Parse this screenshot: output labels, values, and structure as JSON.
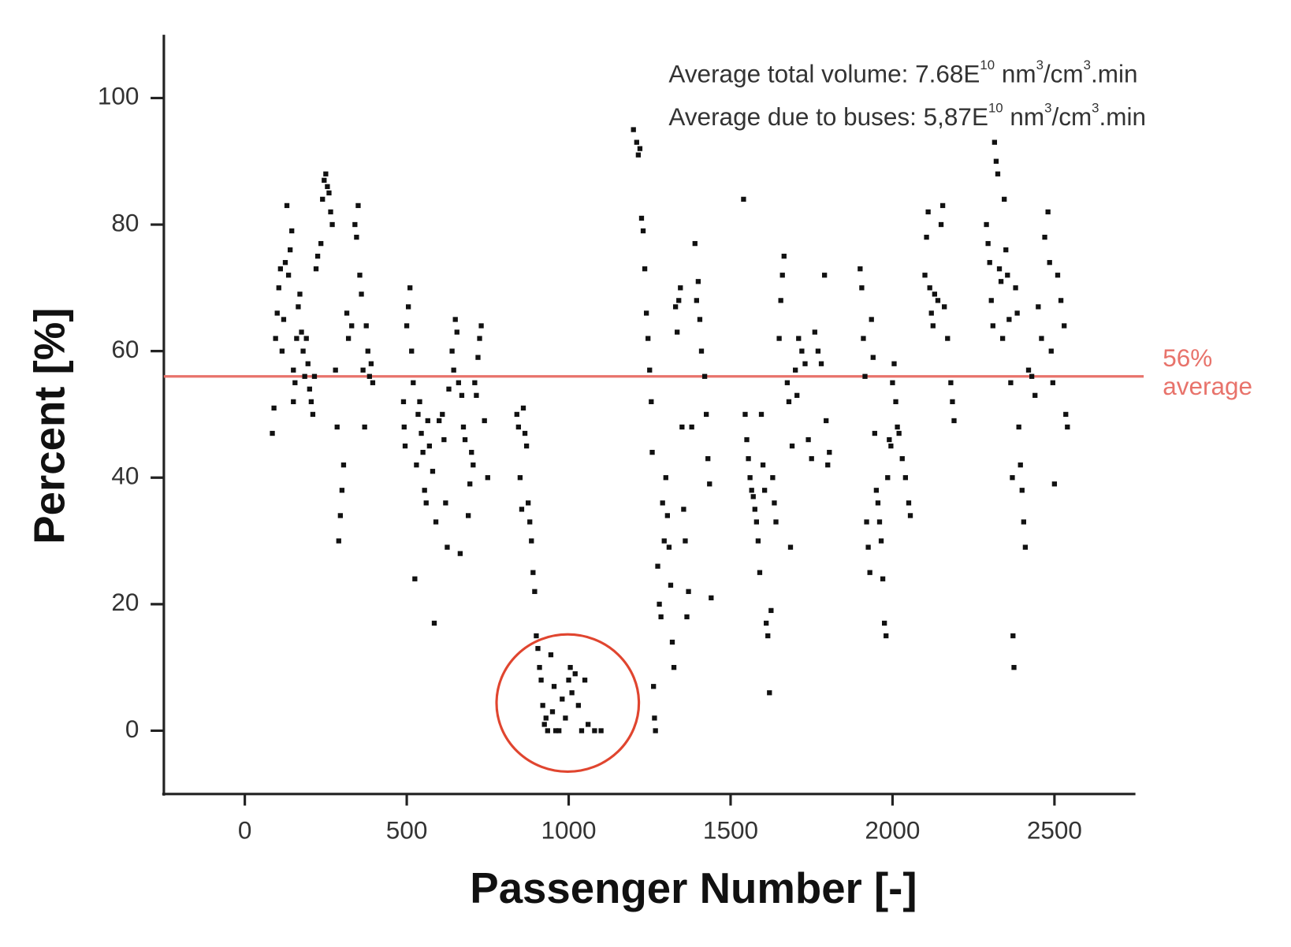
{
  "chart_data": {
    "type": "scatter",
    "x_label": "Passenger Number [-]",
    "y_label": "Percent  [%]",
    "annotations": [
      {
        "parts": [
          "Average total volume: 7.68E",
          "10",
          " nm",
          "3",
          "/cm",
          "3",
          ".min"
        ]
      },
      {
        "parts": [
          "Average due to buses: 5,87E",
          "10",
          " nm",
          "3",
          "/cm",
          "3",
          ".min"
        ]
      }
    ],
    "average_line": {
      "value": 56,
      "label": "56%",
      "text": "average",
      "color": "#e8736b"
    },
    "color": "#111111",
    "xlim": [
      -250,
      2750
    ],
    "xticks": [
      0,
      500,
      1000,
      1500,
      2000,
      2500
    ],
    "ylim": [
      -10,
      110
    ],
    "yticks": [
      0,
      20,
      40,
      60,
      80,
      100
    ],
    "x": [
      85,
      90,
      95,
      100,
      105,
      110,
      115,
      120,
      125,
      130,
      135,
      140,
      145,
      150,
      150,
      155,
      160,
      165,
      170,
      175,
      180,
      185,
      190,
      195,
      200,
      205,
      210,
      215,
      220,
      225,
      235,
      240,
      245,
      250,
      255,
      260,
      265,
      270,
      280,
      285,
      290,
      295,
      300,
      305,
      315,
      320,
      330,
      340,
      345,
      350,
      355,
      360,
      365,
      370,
      375,
      380,
      385,
      390,
      395,
      490,
      492,
      495,
      500,
      505,
      510,
      515,
      520,
      525,
      530,
      535,
      540,
      545,
      550,
      555,
      560,
      565,
      570,
      580,
      585,
      590,
      600,
      610,
      615,
      620,
      625,
      630,
      640,
      645,
      650,
      655,
      660,
      665,
      670,
      675,
      680,
      690,
      695,
      700,
      705,
      710,
      715,
      720,
      725,
      730,
      740,
      750,
      840,
      845,
      850,
      855,
      860,
      865,
      870,
      875,
      880,
      885,
      890,
      895,
      900,
      905,
      910,
      915,
      920,
      925,
      930,
      935,
      945,
      950,
      955,
      960,
      970,
      980,
      990,
      1000,
      1005,
      1010,
      1020,
      1030,
      1040,
      1050,
      1060,
      1080,
      1100,
      1200,
      1210,
      1215,
      1220,
      1225,
      1230,
      1235,
      1240,
      1245,
      1250,
      1255,
      1258,
      1262,
      1265,
      1268,
      1275,
      1280,
      1285,
      1290,
      1295,
      1300,
      1305,
      1310,
      1315,
      1320,
      1325,
      1330,
      1335,
      1340,
      1345,
      1350,
      1355,
      1360,
      1365,
      1370,
      1380,
      1390,
      1395,
      1400,
      1405,
      1410,
      1420,
      1425,
      1430,
      1435,
      1440,
      1540,
      1545,
      1550,
      1555,
      1560,
      1565,
      1570,
      1575,
      1580,
      1585,
      1590,
      1595,
      1600,
      1605,
      1610,
      1615,
      1620,
      1625,
      1630,
      1635,
      1640,
      1650,
      1655,
      1660,
      1665,
      1675,
      1680,
      1685,
      1690,
      1700,
      1705,
      1710,
      1720,
      1730,
      1740,
      1750,
      1760,
      1770,
      1780,
      1790,
      1795,
      1800,
      1805,
      1900,
      1905,
      1910,
      1915,
      1920,
      1925,
      1930,
      1935,
      1940,
      1945,
      1950,
      1955,
      1960,
      1965,
      1970,
      1975,
      1980,
      1985,
      1990,
      1995,
      2000,
      2005,
      2010,
      2015,
      2020,
      2030,
      2040,
      2050,
      2055,
      2100,
      2105,
      2110,
      2115,
      2120,
      2125,
      2130,
      2140,
      2150,
      2155,
      2160,
      2170,
      2180,
      2185,
      2190,
      2290,
      2295,
      2300,
      2305,
      2310,
      2315,
      2320,
      2325,
      2330,
      2335,
      2340,
      2345,
      2350,
      2355,
      2360,
      2365,
      2370,
      2372,
      2375,
      2380,
      2385,
      2390,
      2395,
      2400,
      2405,
      2410,
      2420,
      2430,
      2440,
      2450,
      2460,
      2470,
      2480,
      2485,
      2490,
      2495,
      2500,
      2510,
      2520,
      2530,
      2535,
      2540
    ],
    "values": [
      47,
      51,
      62,
      66,
      70,
      73,
      60,
      65,
      74,
      83,
      72,
      76,
      79,
      57,
      52,
      55,
      62,
      67,
      69,
      63,
      60,
      56,
      62,
      58,
      54,
      52,
      50,
      56,
      73,
      75,
      77,
      84,
      87,
      88,
      86,
      85,
      82,
      80,
      57,
      48,
      30,
      34,
      38,
      42,
      66,
      62,
      64,
      80,
      78,
      83,
      72,
      69,
      57,
      48,
      64,
      60,
      56,
      58,
      55,
      52,
      48,
      45,
      64,
      67,
      70,
      60,
      55,
      24,
      42,
      50,
      52,
      47,
      44,
      38,
      36,
      49,
      45,
      41,
      17,
      33,
      49,
      50,
      46,
      36,
      29,
      54,
      60,
      57,
      65,
      63,
      55,
      28,
      53,
      48,
      46,
      34,
      39,
      44,
      42,
      55,
      53,
      59,
      62,
      64,
      49,
      40,
      50,
      48,
      40,
      35,
      51,
      47,
      45,
      36,
      33,
      30,
      25,
      22,
      15,
      13,
      10,
      8,
      4,
      1,
      2,
      0,
      12,
      3,
      7,
      0,
      0,
      5,
      2,
      8,
      10,
      6,
      9,
      4,
      0,
      8,
      1,
      0,
      0,
      95,
      93,
      91,
      92,
      81,
      79,
      73,
      66,
      62,
      57,
      52,
      44,
      7,
      2,
      0,
      26,
      20,
      18,
      36,
      30,
      40,
      34,
      29,
      23,
      14,
      10,
      67,
      63,
      68,
      70,
      48,
      35,
      30,
      18,
      22,
      48,
      77,
      68,
      71,
      65,
      60,
      56,
      50,
      43,
      39,
      21,
      84,
      50,
      46,
      43,
      40,
      38,
      37,
      35,
      33,
      30,
      25,
      50,
      42,
      38,
      17,
      15,
      6,
      19,
      40,
      36,
      33,
      62,
      68,
      72,
      75,
      55,
      52,
      29,
      45,
      57,
      53,
      62,
      60,
      58,
      46,
      43,
      63,
      60,
      58,
      72,
      49,
      42,
      44,
      73,
      70,
      62,
      56,
      33,
      29,
      25,
      65,
      59,
      47,
      38,
      36,
      33,
      30,
      24,
      17,
      15,
      40,
      46,
      45,
      55,
      58,
      52,
      48,
      47,
      43,
      40,
      36,
      34,
      72,
      78,
      82,
      70,
      66,
      64,
      69,
      68,
      80,
      83,
      67,
      62,
      55,
      52,
      49,
      80,
      77,
      74,
      68,
      64,
      93,
      90,
      88,
      73,
      71,
      62,
      84,
      76,
      72,
      65,
      55,
      40,
      15,
      10,
      70,
      66,
      48,
      42,
      38,
      33,
      29,
      57,
      56,
      53,
      67,
      62,
      78,
      82,
      74,
      60,
      55,
      39,
      72,
      68,
      64,
      50,
      48
    ]
  }
}
